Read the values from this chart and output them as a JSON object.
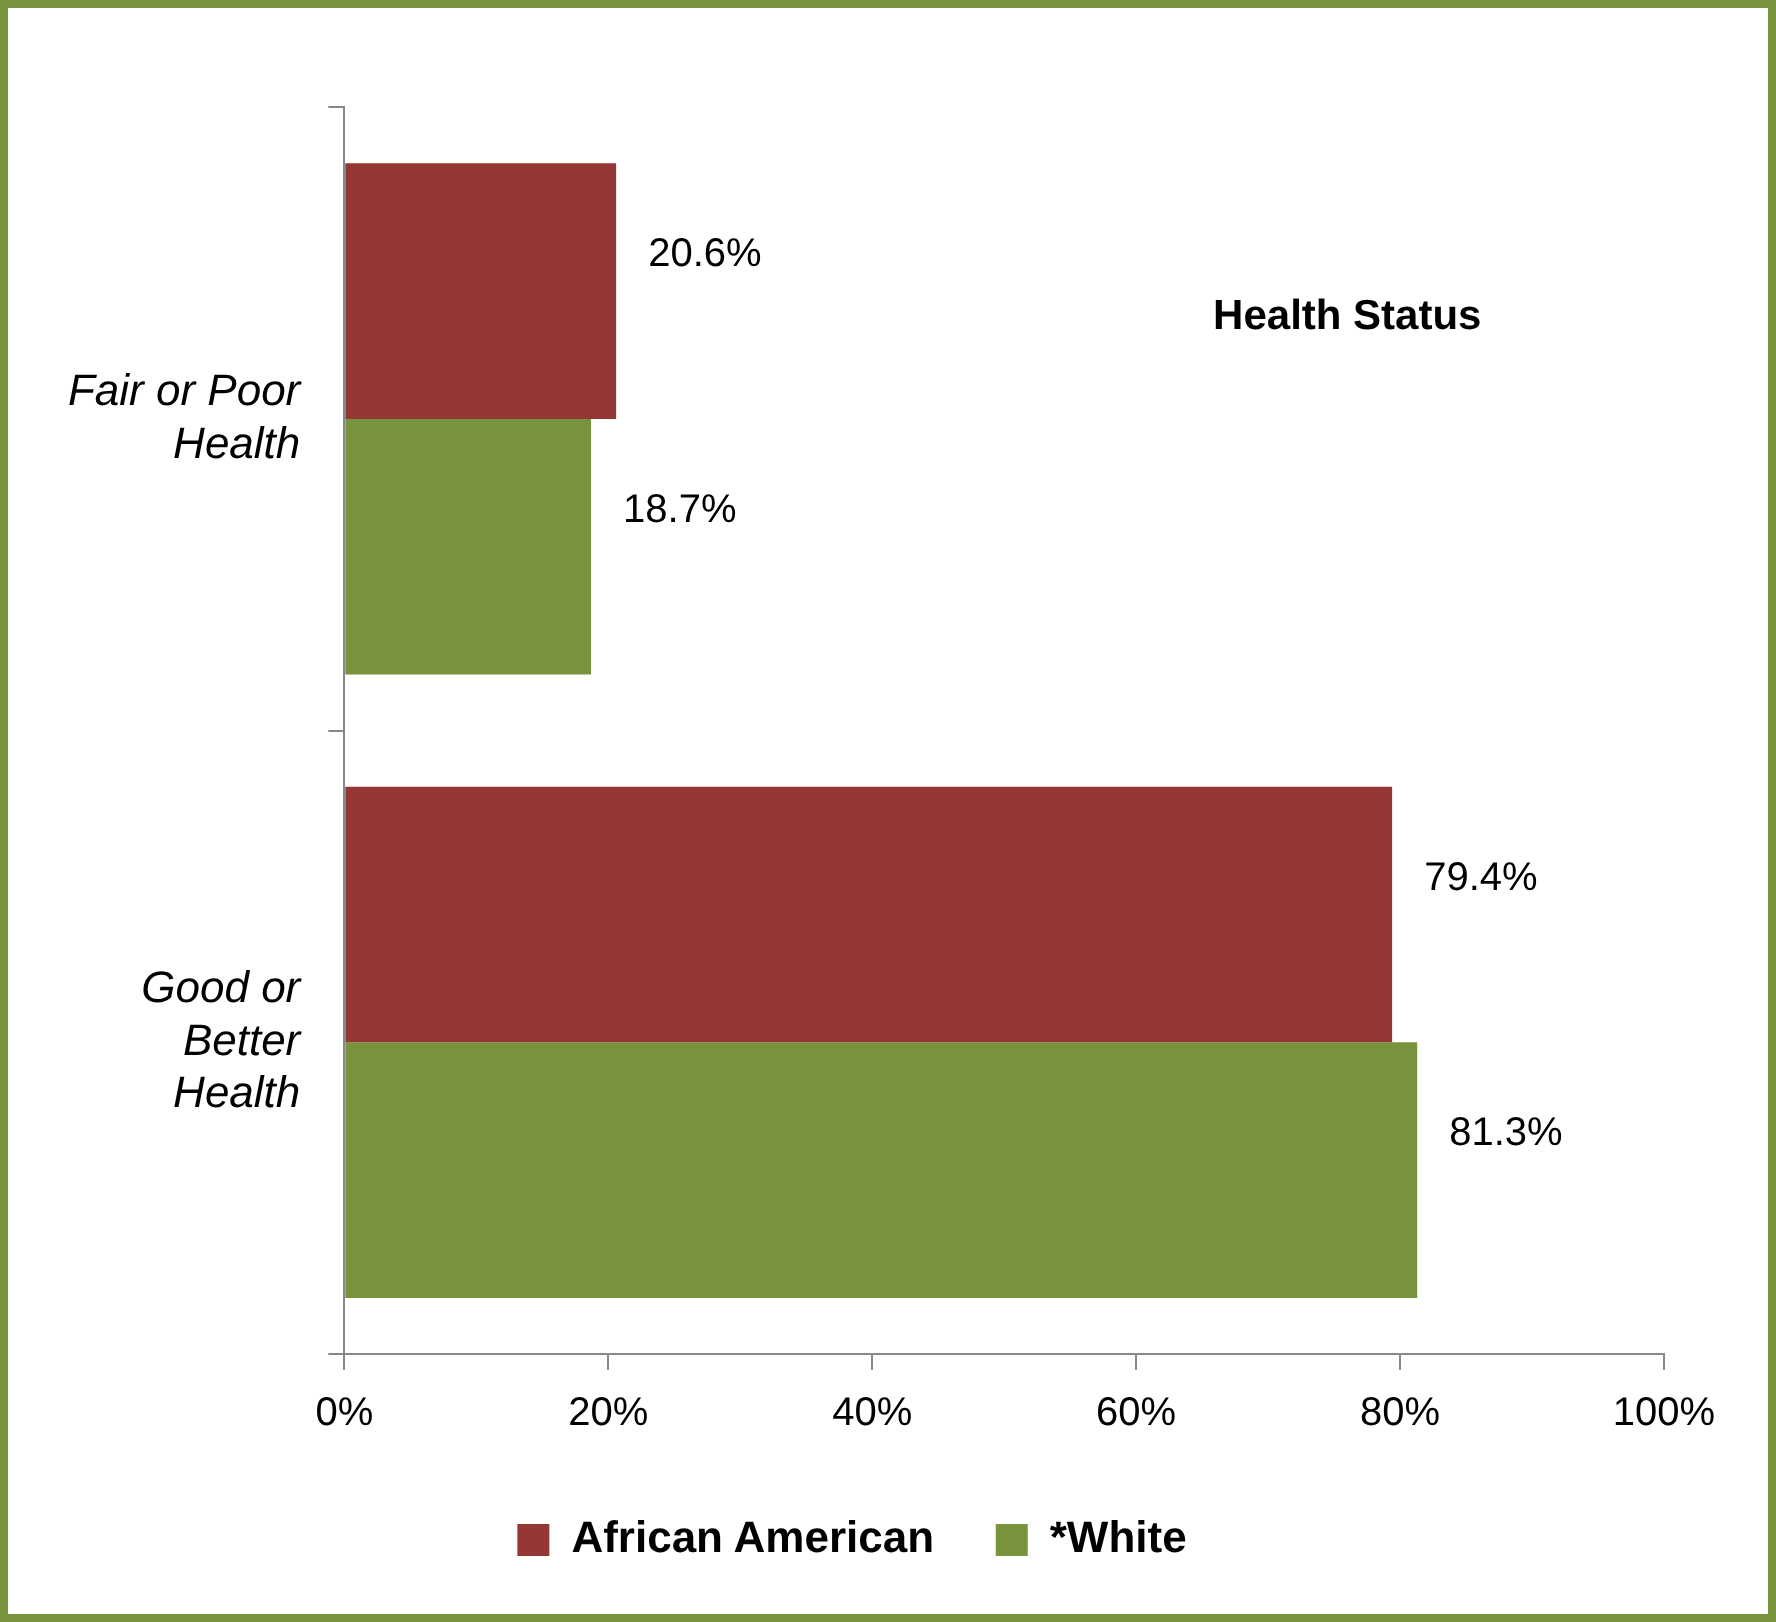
{
  "chart_data": {
    "type": "bar",
    "orientation": "horizontal",
    "title": "Health Status",
    "categories": [
      "Fair or Poor Health",
      "Good or Better Health"
    ],
    "series": [
      {
        "name": "African American",
        "color": "#953735",
        "values": [
          20.6,
          79.4
        ],
        "value_labels": [
          "20.6%",
          "79.4%"
        ]
      },
      {
        "name": "*White",
        "color": "#77933c",
        "values": [
          18.7,
          81.3
        ],
        "value_labels": [
          "18.7%",
          "81.3%"
        ]
      }
    ],
    "xlim": [
      0,
      100
    ],
    "xticks": [
      {
        "value": 0,
        "label": "0%"
      },
      {
        "value": 20,
        "label": "20%"
      },
      {
        "value": 40,
        "label": "40%"
      },
      {
        "value": 60,
        "label": "60%"
      },
      {
        "value": 80,
        "label": "80%"
      },
      {
        "value": 100,
        "label": "100%"
      }
    ],
    "grid": false,
    "legend": "bottom"
  }
}
